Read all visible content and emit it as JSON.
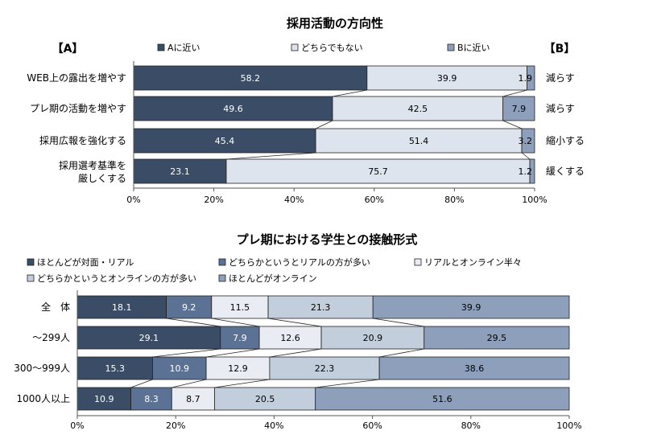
{
  "chart_data": [
    {
      "type": "bar",
      "orientation": "horizontal",
      "stacked": true,
      "title": "採用活動の方向性",
      "left_header": "【A】",
      "right_header": "【B】",
      "categories": [
        "WEB上の露出を増やす",
        "プレ期の活動を増やす",
        "採用広報を強化する",
        [
          "採用選考基準を",
          "厳しくする"
        ]
      ],
      "right_labels": [
        "減らす",
        "減らす",
        "縮小する",
        "緩くする"
      ],
      "series": [
        {
          "name": "Aに近い",
          "values": [
            58.2,
            49.6,
            45.4,
            23.1
          ],
          "color": "#3b4d66"
        },
        {
          "name": "どちらでもない",
          "values": [
            39.9,
            42.5,
            51.4,
            75.7
          ],
          "color": "#dde4ee"
        },
        {
          "name": "Bに近い",
          "values": [
            1.9,
            7.9,
            3.2,
            1.2
          ],
          "color": "#8d9fbb"
        }
      ],
      "xlim": [
        0,
        100
      ],
      "xticks": [
        "0%",
        "20%",
        "40%",
        "60%",
        "80%",
        "100%"
      ]
    },
    {
      "type": "bar",
      "orientation": "horizontal",
      "stacked": true,
      "title": "プレ期における学生との接触形式",
      "categories": [
        "全　体",
        "～299人",
        "300～999人",
        "1000人以上"
      ],
      "series": [
        {
          "name": "ほとんどが対面・リアル",
          "values": [
            18.1,
            29.1,
            15.3,
            10.9
          ],
          "color": "#3b4d66"
        },
        {
          "name": "どちらかというとリアルの方が多い",
          "values": [
            9.2,
            7.9,
            10.9,
            8.3
          ],
          "color": "#5c7295"
        },
        {
          "name": "リアルとオンライン半々",
          "values": [
            11.5,
            12.6,
            12.9,
            8.7
          ],
          "color": "#e9edf3"
        },
        {
          "name": "どちらかというとオンラインの方が多い",
          "values": [
            21.3,
            20.9,
            22.3,
            20.5
          ],
          "color": "#c3cedd"
        },
        {
          "name": "ほとんどがオンライン",
          "values": [
            39.9,
            29.5,
            38.6,
            51.6
          ],
          "color": "#8d9fbb"
        }
      ],
      "xlim": [
        0,
        100
      ],
      "xticks": [
        "0%",
        "20%",
        "40%",
        "60%",
        "80%",
        "100%"
      ]
    }
  ]
}
